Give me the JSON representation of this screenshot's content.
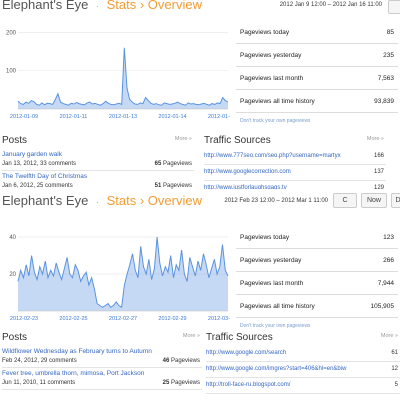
{
  "top": {
    "header": {
      "blog_name": "Elephant's Eye",
      "sep": "·",
      "stats": "Stats",
      "sep2": "›",
      "overview": "Overview",
      "range": "2012 Jan 9 12:00 – 2012 Jan 16 11:00"
    },
    "chart_data": {
      "type": "area",
      "x_labels": [
        "2012-01-09",
        "2012-01-11",
        "2012-01-13",
        "2012-01-14",
        "2012-01-16"
      ],
      "y_ticks": [
        100,
        200
      ],
      "ylim": [
        0,
        230
      ],
      "values": [
        20,
        14,
        12,
        18,
        15,
        22,
        19,
        12,
        10,
        16,
        11,
        15,
        14,
        12,
        24,
        40,
        18,
        14,
        12,
        10,
        15,
        13,
        17,
        14,
        12,
        11,
        16,
        18,
        13,
        15,
        12,
        10,
        14,
        20,
        15,
        12,
        11,
        13,
        15,
        12,
        160,
        55,
        25,
        18,
        13,
        12,
        16,
        14,
        30,
        22,
        15,
        12,
        14,
        11,
        10,
        16,
        14,
        12,
        13,
        15,
        18,
        14,
        12,
        10,
        16,
        13,
        14,
        12,
        11,
        13,
        15,
        12,
        10,
        14,
        12,
        16,
        14,
        30,
        22,
        18
      ],
      "color": "#5b93e0"
    },
    "stats": [
      {
        "label": "Pageviews today",
        "value": "85"
      },
      {
        "label": "Pageviews yesterday",
        "value": "235"
      },
      {
        "label": "Pageviews last month",
        "value": "7,563"
      },
      {
        "label": "Pageviews all time history",
        "value": "93,839"
      }
    ],
    "track_text": "Don't track your own pageviews",
    "posts": {
      "title": "Posts",
      "more": "More »",
      "items": [
        {
          "title": "January garden walk",
          "meta": "Jan 13, 2012, 33 comments",
          "views": "65",
          "views_label": "Pageviews"
        },
        {
          "title": "The Twelfth Day of Christmas",
          "meta": "Jan 6, 2012, 25 comments",
          "views": "51",
          "views_label": "Pageviews"
        }
      ]
    },
    "traffic": {
      "title": "Traffic Sources",
      "more": "More »",
      "items": [
        {
          "url": "http://www.777seo.com/seo.php?username=martyx",
          "count": "166"
        },
        {
          "url": "http://www.googlecorrection.com",
          "count": "137"
        },
        {
          "url": "http://www.justforlaughsgags.tv",
          "count": "129"
        }
      ]
    }
  },
  "bottom": {
    "header": {
      "blog_name": "Elephant's Eye",
      "sep": "·",
      "stats": "Stats",
      "sep2": "›",
      "overview": "Overview",
      "range": "2012 Feb 23 12:00 – 2012 Mar 1 11:00",
      "refresh": "C",
      "now": "Now",
      "day": "D"
    },
    "chart_data": {
      "type": "area",
      "x_labels": [
        "2012-02-23",
        "2012-02-25",
        "2012-02-27",
        "2012-02-29",
        "2012-03-01"
      ],
      "y_ticks": [
        20,
        40
      ],
      "ylim": [
        0,
        46
      ],
      "values": [
        16,
        22,
        18,
        25,
        19,
        30,
        21,
        17,
        24,
        20,
        27,
        18,
        22,
        19,
        26,
        21,
        17,
        23,
        29,
        20,
        18,
        25,
        22,
        16,
        19,
        21,
        14,
        18,
        12,
        4,
        3,
        2,
        3,
        4,
        2,
        3,
        5,
        3,
        2,
        14,
        20,
        25,
        31,
        22,
        18,
        35,
        24,
        20,
        28,
        17,
        23,
        40,
        26,
        19,
        24,
        21,
        30,
        18,
        25,
        22,
        33,
        20,
        16,
        29,
        24,
        19,
        27,
        22,
        31,
        25,
        18,
        23,
        28,
        20,
        24,
        36,
        22,
        19
      ],
      "color": "#5b93e0"
    },
    "stats": [
      {
        "label": "Pageviews today",
        "value": "123"
      },
      {
        "label": "Pageviews yesterday",
        "value": "266"
      },
      {
        "label": "Pageviews last month",
        "value": "7,944"
      },
      {
        "label": "Pageviews all time history",
        "value": "105,905"
      }
    ],
    "track_text": "Don't track your own pageviews",
    "posts": {
      "title": "Posts",
      "more": "More »",
      "items": [
        {
          "title": "Wildflower Wednesday as February turns to Autumn",
          "meta": "Feb 24, 2012, 29 comments",
          "views": "46",
          "views_label": "Pageviews"
        },
        {
          "title": "Fever tree, umbrella thorn, mimosa, Port Jackson",
          "meta": "Jun 11, 2010, 11 comments",
          "views": "25",
          "views_label": "Pageviews"
        }
      ]
    },
    "traffic": {
      "title": "Traffic Sources",
      "more": "More »",
      "items": [
        {
          "url": "http://www.google.com/search",
          "count": "61"
        },
        {
          "url": "http://www.google.com/imgres?start=406&hl=en&biw",
          "count": "12"
        },
        {
          "url": "http://troll-face-ru.blogspot.com/",
          "count": "5"
        }
      ]
    }
  }
}
